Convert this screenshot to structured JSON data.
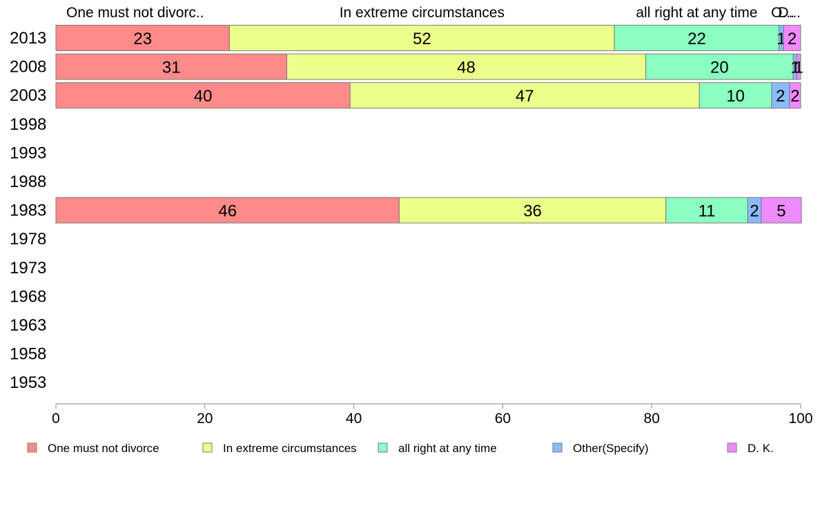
{
  "chart_data": {
    "type": "bar",
    "orientation": "horizontal",
    "stacked": true,
    "categories": [
      "2013",
      "2008",
      "2003",
      "1998",
      "1993",
      "1988",
      "1983",
      "1978",
      "1973",
      "1968",
      "1963",
      "1958",
      "1953"
    ],
    "series": [
      {
        "name": "One must not divorce",
        "color": "#ff8a8a",
        "values": [
          23.3,
          31,
          39.5,
          null,
          null,
          null,
          46.1,
          null,
          null,
          null,
          null,
          null,
          null
        ],
        "labels": [
          "23",
          "31",
          "40",
          "",
          "",
          "",
          "46",
          "",
          "",
          "",
          "",
          "",
          ""
        ]
      },
      {
        "name": "In extreme circumstances",
        "color": "#ecff8a",
        "values": [
          51.7,
          48.2,
          46.9,
          null,
          null,
          null,
          35.8,
          null,
          null,
          null,
          null,
          null,
          null
        ],
        "labels": [
          "52",
          "48",
          "47",
          "",
          "",
          "",
          "36",
          "",
          "",
          "",
          "",
          "",
          ""
        ]
      },
      {
        "name": "all right at any time",
        "color": "#8affc1",
        "values": [
          22.1,
          19.8,
          9.7,
          null,
          null,
          null,
          11,
          null,
          null,
          null,
          null,
          null,
          null
        ],
        "labels": [
          "22",
          "20",
          "10",
          "",
          "",
          "",
          "11",
          "",
          "",
          "",
          "",
          "",
          ""
        ]
      },
      {
        "name": "Other(Specify)",
        "color": "#8abbff",
        "values": [
          0.6,
          0.5,
          2.4,
          null,
          null,
          null,
          1.8,
          null,
          null,
          null,
          null,
          null,
          null
        ],
        "labels": [
          "1",
          "1",
          "2",
          "",
          "",
          "",
          "2",
          "",
          "",
          "",
          "",
          "",
          ""
        ]
      },
      {
        "name": "D. K.",
        "color": "#f08aff",
        "values": [
          2.3,
          0.5,
          1.5,
          null,
          null,
          null,
          5.4,
          null,
          null,
          null,
          null,
          null,
          null
        ],
        "labels": [
          "2",
          "1",
          "2",
          "",
          "",
          "",
          "5",
          "",
          "",
          "",
          "",
          "",
          ""
        ]
      }
    ],
    "top_labels": [
      "One must not divorc..",
      "In extreme circumstances",
      "all right at any time",
      "O...",
      "D..."
    ],
    "xlim": [
      0,
      100
    ],
    "xticks": [
      "0",
      "20",
      "40",
      "60",
      "80",
      "100"
    ],
    "grid": false,
    "legend_position": "bottom"
  }
}
